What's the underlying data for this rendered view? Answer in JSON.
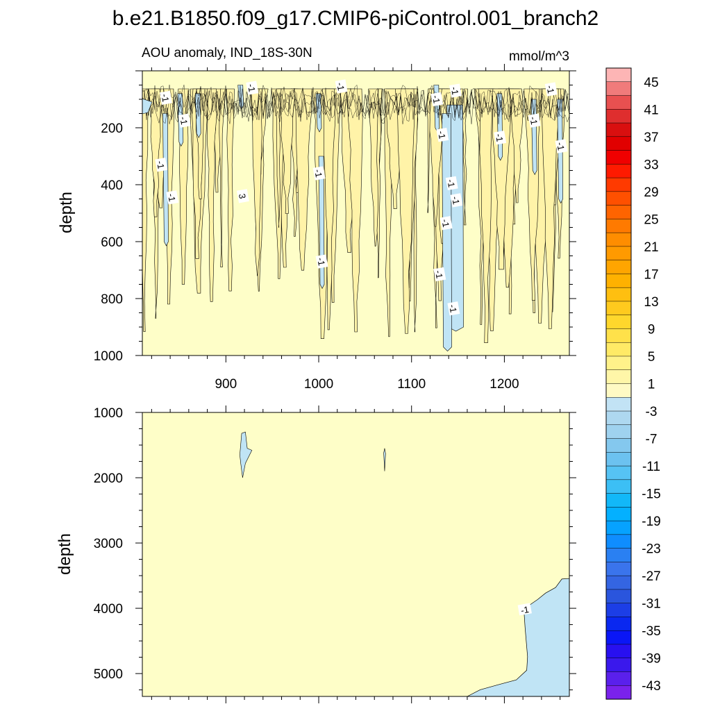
{
  "title": "b.e21.B1850.f09_g17.CMIP6-piControl.001_branch2",
  "chart_data": {
    "type": "heatmap",
    "subtitle": "AOU anomaly, IND_18S-30N",
    "units": "mmol/m^3",
    "xaxis": {
      "range": [
        810,
        1270
      ],
      "ticks": [
        900,
        1000,
        1100,
        1200
      ],
      "tick_labels": [
        "900",
        "1000",
        "1100",
        "1200"
      ]
    },
    "panels": [
      {
        "name": "upper",
        "ylabel": "depth",
        "yrange": [
          0,
          1000
        ],
        "ytick_labels": [
          "200",
          "400",
          "600",
          "800",
          "1000"
        ],
        "yticks": [
          200,
          400,
          600,
          800,
          1000
        ],
        "xtick_labels_shown": true,
        "contour_labels": [
          {
            "x": 835,
            "y": 95,
            "text": "-1"
          },
          {
            "x": 928,
            "y": 60,
            "text": "-1"
          },
          {
            "x": 1024,
            "y": 55,
            "text": "-1"
          },
          {
            "x": 1127,
            "y": 100,
            "text": "-1"
          },
          {
            "x": 1147,
            "y": 70,
            "text": "-1"
          },
          {
            "x": 1250,
            "y": 65,
            "text": "-1"
          },
          {
            "x": 855,
            "y": 175,
            "text": "-1"
          },
          {
            "x": 1133,
            "y": 225,
            "text": "-1"
          },
          {
            "x": 1195,
            "y": 235,
            "text": "-1"
          },
          {
            "x": 1232,
            "y": 175,
            "text": "-1"
          },
          {
            "x": 1261,
            "y": 265,
            "text": "-1"
          },
          {
            "x": 830,
            "y": 330,
            "text": "-1"
          },
          {
            "x": 842,
            "y": 445,
            "text": "-1"
          },
          {
            "x": 1000,
            "y": 360,
            "text": "-1"
          },
          {
            "x": 1143,
            "y": 395,
            "text": "-1"
          },
          {
            "x": 1148,
            "y": 455,
            "text": "-1"
          },
          {
            "x": 1137,
            "y": 535,
            "text": "-1"
          },
          {
            "x": 1003,
            "y": 670,
            "text": "-1"
          },
          {
            "x": 1130,
            "y": 715,
            "text": "-1"
          },
          {
            "x": 1145,
            "y": 835,
            "text": "-1"
          },
          {
            "x": 918,
            "y": 440,
            "text": "3"
          }
        ]
      },
      {
        "name": "lower",
        "ylabel": "depth",
        "yrange": [
          1000,
          5350
        ],
        "ytick_labels": [
          "1000",
          "2000",
          "3000",
          "4000",
          "5000"
        ],
        "yticks": [
          1000,
          2000,
          3000,
          4000,
          5000
        ],
        "xtick_labels_shown": false,
        "contour_labels": [
          {
            "x": 1222,
            "y": 4020,
            "text": "-1"
          }
        ]
      }
    ],
    "colorbar": {
      "labels": [
        "45",
        "41",
        "37",
        "33",
        "29",
        "25",
        "21",
        "17",
        "13",
        "9",
        "5",
        "1",
        "-3",
        "-7",
        "-11",
        "-15",
        "-19",
        "-23",
        "-27",
        "-31",
        "-35",
        "-39",
        "-43"
      ],
      "colors": [
        "#fdb5b5",
        "#f07b7b",
        "#e85050",
        "#df2e2e",
        "#d90f0f",
        "#e10000",
        "#f00000",
        "#ff1a00",
        "#ff3a00",
        "#ff5000",
        "#ff6400",
        "#ff7a00",
        "#ff8d00",
        "#ff9a00",
        "#ffa500",
        "#ffb100",
        "#ffbf10",
        "#ffca1e",
        "#ffd72c",
        "#ffe14a",
        "#ffea66",
        "#fff28a",
        "#fff6a8",
        "#fffac4",
        "#c2e3f5",
        "#aed8f0",
        "#9fd2ef",
        "#84c8ee",
        "#6cc2f0",
        "#56c3f4",
        "#3cbff5",
        "#12b8f8",
        "#04b0ff",
        "#06a2ff",
        "#0f8dff",
        "#2a80f2",
        "#3a74ec",
        "#3465e2",
        "#2a55dd",
        "#1c3ee6",
        "#0a28f0",
        "#0a16f6",
        "#2810f0",
        "#3a18ec",
        "#5a20ec",
        "#7a22ec"
      ]
    },
    "fill_colors": {
      "positive": "#fefec8",
      "positive_2": "#fff3a8",
      "negative": "#c0e4f5",
      "line": "#000000"
    }
  }
}
